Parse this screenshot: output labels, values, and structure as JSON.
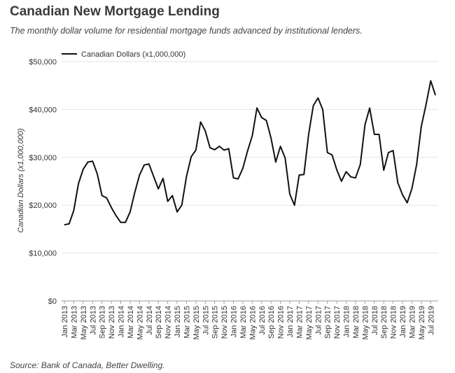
{
  "header": {
    "title": "Canadian New Mortgage Lending",
    "subtitle": "The monthly dollar volume for residential mortgage funds advanced by institutional lenders."
  },
  "footer": {
    "source": "Source: Bank of Canada, Better Dwelling."
  },
  "chart_data": {
    "type": "line",
    "ylabel": "Canadian Dollars (x1,000,000)",
    "ylim": [
      0,
      50000
    ],
    "yticks": [
      0,
      10000,
      20000,
      30000,
      40000,
      50000
    ],
    "ytick_labels": [
      "$0",
      "$10,000",
      "$20,000",
      "$30,000",
      "$40,000",
      "$50,000"
    ],
    "grid": true,
    "legend_position": "top-left",
    "x": [
      "Jan 2013",
      "Feb 2013",
      "Mar 2013",
      "Apr 2013",
      "May 2013",
      "Jun 2013",
      "Jul 2013",
      "Aug 2013",
      "Sep 2013",
      "Oct 2013",
      "Nov 2013",
      "Dec 2013",
      "Jan 2014",
      "Feb 2014",
      "Mar 2014",
      "Apr 2014",
      "May 2014",
      "Jun 2014",
      "Jul 2014",
      "Aug 2014",
      "Sep 2014",
      "Oct 2014",
      "Nov 2014",
      "Dec 2014",
      "Jan 2015",
      "Feb 2015",
      "Mar 2015",
      "Apr 2015",
      "May 2015",
      "Jun 2015",
      "Jul 2015",
      "Aug 2015",
      "Sep 2015",
      "Oct 2015",
      "Nov 2015",
      "Dec 2015",
      "Jan 2016",
      "Feb 2016",
      "Mar 2016",
      "Apr 2016",
      "May 2016",
      "Jun 2016",
      "Jul 2016",
      "Aug 2016",
      "Sep 2016",
      "Oct 2016",
      "Nov 2016",
      "Dec 2016",
      "Jan 2017",
      "Feb 2017",
      "Mar 2017",
      "Apr 2017",
      "May 2017",
      "Jun 2017",
      "Jul 2017",
      "Aug 2017",
      "Sep 2017",
      "Oct 2017",
      "Nov 2017",
      "Dec 2017",
      "Jan 2018",
      "Feb 2018",
      "Mar 2018",
      "Apr 2018",
      "May 2018",
      "Jun 2018",
      "Jul 2018",
      "Aug 2018",
      "Sep 2018",
      "Oct 2018",
      "Nov 2018",
      "Dec 2018",
      "Jan 2019",
      "Feb 2019",
      "Mar 2019",
      "Apr 2019",
      "May 2019",
      "Jun 2019",
      "Jul 2019",
      "Aug 2019"
    ],
    "xtick_labels": [
      "Jan 2013",
      "Mar 2013",
      "May 2013",
      "Jul 2013",
      "Sep 2013",
      "Nov 2013",
      "Jan 2014",
      "Mar 2014",
      "May 2014",
      "Jul 2014",
      "Sep 2014",
      "Nov 2014",
      "Jan 2015",
      "Mar 2015",
      "May 2015",
      "Jul 2015",
      "Sep 2015",
      "Nov 2015",
      "Jan 2016",
      "Mar 2016",
      "May 2016",
      "Jul 2016",
      "Sep 2016",
      "Nov 2016",
      "Jan 2017",
      "Mar 2017",
      "May 2017",
      "Jul 2017",
      "Sep 2017",
      "Nov 2017",
      "Jan 2018",
      "Mar 2018",
      "May 2018",
      "Jul 2018",
      "Sep 2018",
      "Nov 2018",
      "Jan 2019",
      "Mar 2019",
      "May 2019",
      "Jul 2019"
    ],
    "series": [
      {
        "name": "Canadian Dollars (x1,000,000)",
        "color": "#111111",
        "values": [
          15900,
          16100,
          18900,
          24500,
          27500,
          29000,
          29200,
          26500,
          22000,
          21500,
          19500,
          17800,
          16400,
          16400,
          18600,
          22700,
          26300,
          28400,
          28600,
          26000,
          23400,
          25600,
          20800,
          22000,
          18600,
          20000,
          26000,
          30100,
          31500,
          37400,
          35500,
          32000,
          31600,
          32300,
          31500,
          31800,
          25700,
          25500,
          27700,
          31300,
          34500,
          40300,
          38300,
          37700,
          34000,
          29000,
          32300,
          29900,
          22300,
          20000,
          26300,
          26400,
          34800,
          40800,
          42400,
          40000,
          31000,
          30500,
          27400,
          25000,
          27000,
          25900,
          25700,
          28500,
          36800,
          40300,
          34800,
          34800,
          27300,
          31000,
          31400,
          24700,
          22200,
          20500,
          23500,
          28500,
          36500,
          41000,
          46000,
          43000
        ]
      }
    ]
  }
}
